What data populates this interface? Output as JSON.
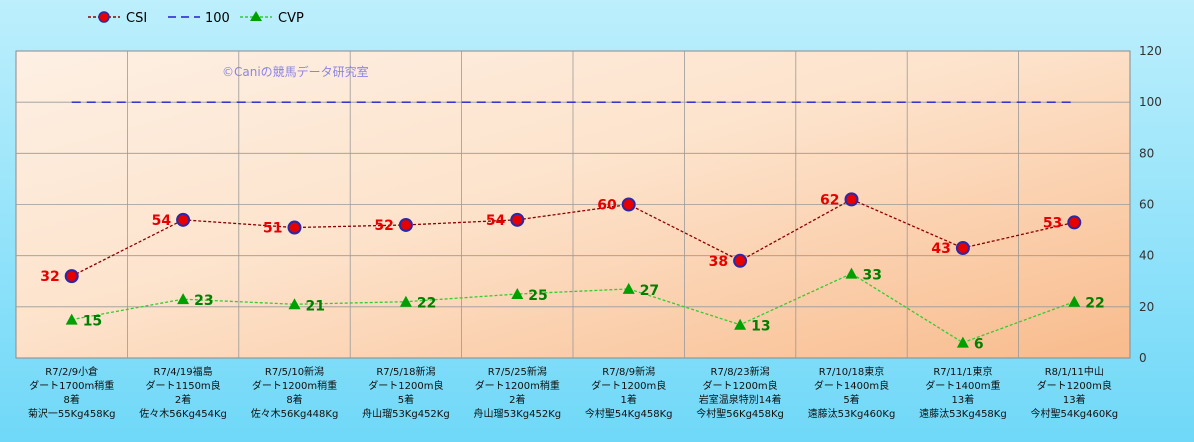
{
  "legend": {
    "csi_label": "CSI",
    "ref_label": "100",
    "cvp_label": "CVP"
  },
  "watermark": "©Caniの競馬データ研究室",
  "colors": {
    "csi_line": "#8b0000",
    "csi_marker": "#e60000",
    "csi_marker_border": "#2a2aa8",
    "ref_line": "#1f1fd0",
    "cvp_line": "#33cc33",
    "cvp_marker": "#00a000",
    "grid": "#9a9a9a"
  },
  "chart_data": {
    "type": "line",
    "ylim": [
      0,
      120
    ],
    "yticks": [
      0,
      20,
      40,
      60,
      80,
      100,
      120
    ],
    "grid": true,
    "legend_position": "top-left",
    "categories": [
      [
        "R7/2/9小倉",
        "ダート1700m稍重",
        "8着",
        "菊沢一55Kg458Kg"
      ],
      [
        "R7/4/19福島",
        "ダート1150m良",
        "2着",
        "佐々木56Kg454Kg"
      ],
      [
        "R7/5/10新潟",
        "ダート1200m稍重",
        "8着",
        "佐々木56Kg448Kg"
      ],
      [
        "R7/5/18新潟",
        "ダート1200m良",
        "5着",
        "舟山瑠53Kg452Kg"
      ],
      [
        "R7/5/25新潟",
        "ダート1200m稍重",
        "2着",
        "舟山瑠53Kg452Kg"
      ],
      [
        "R7/8/9新潟",
        "ダート1200m良",
        "1着",
        "今村聖54Kg458Kg"
      ],
      [
        "R7/8/23新潟",
        "ダート1200m良",
        "岩室温泉特別14着",
        "今村聖56Kg458Kg"
      ],
      [
        "R7/10/18東京",
        "ダート1400m良",
        "5着",
        "遠藤汰53Kg460Kg"
      ],
      [
        "R7/11/1東京",
        "ダート1400m重",
        "13着",
        "遠藤汰53Kg458Kg"
      ],
      [
        "R8/1/11中山",
        "ダート1200m良",
        "13着",
        "今村聖54Kg460Kg"
      ]
    ],
    "series": [
      {
        "name": "CSI",
        "values": [
          32,
          54,
          51,
          52,
          54,
          60,
          38,
          62,
          43,
          53
        ]
      },
      {
        "name": "100",
        "values": [
          100,
          100,
          100,
          100,
          100,
          100,
          100,
          100,
          100,
          100
        ]
      },
      {
        "name": "CVP",
        "values": [
          15,
          23,
          21,
          22,
          25,
          27,
          13,
          33,
          6,
          22
        ]
      }
    ]
  }
}
